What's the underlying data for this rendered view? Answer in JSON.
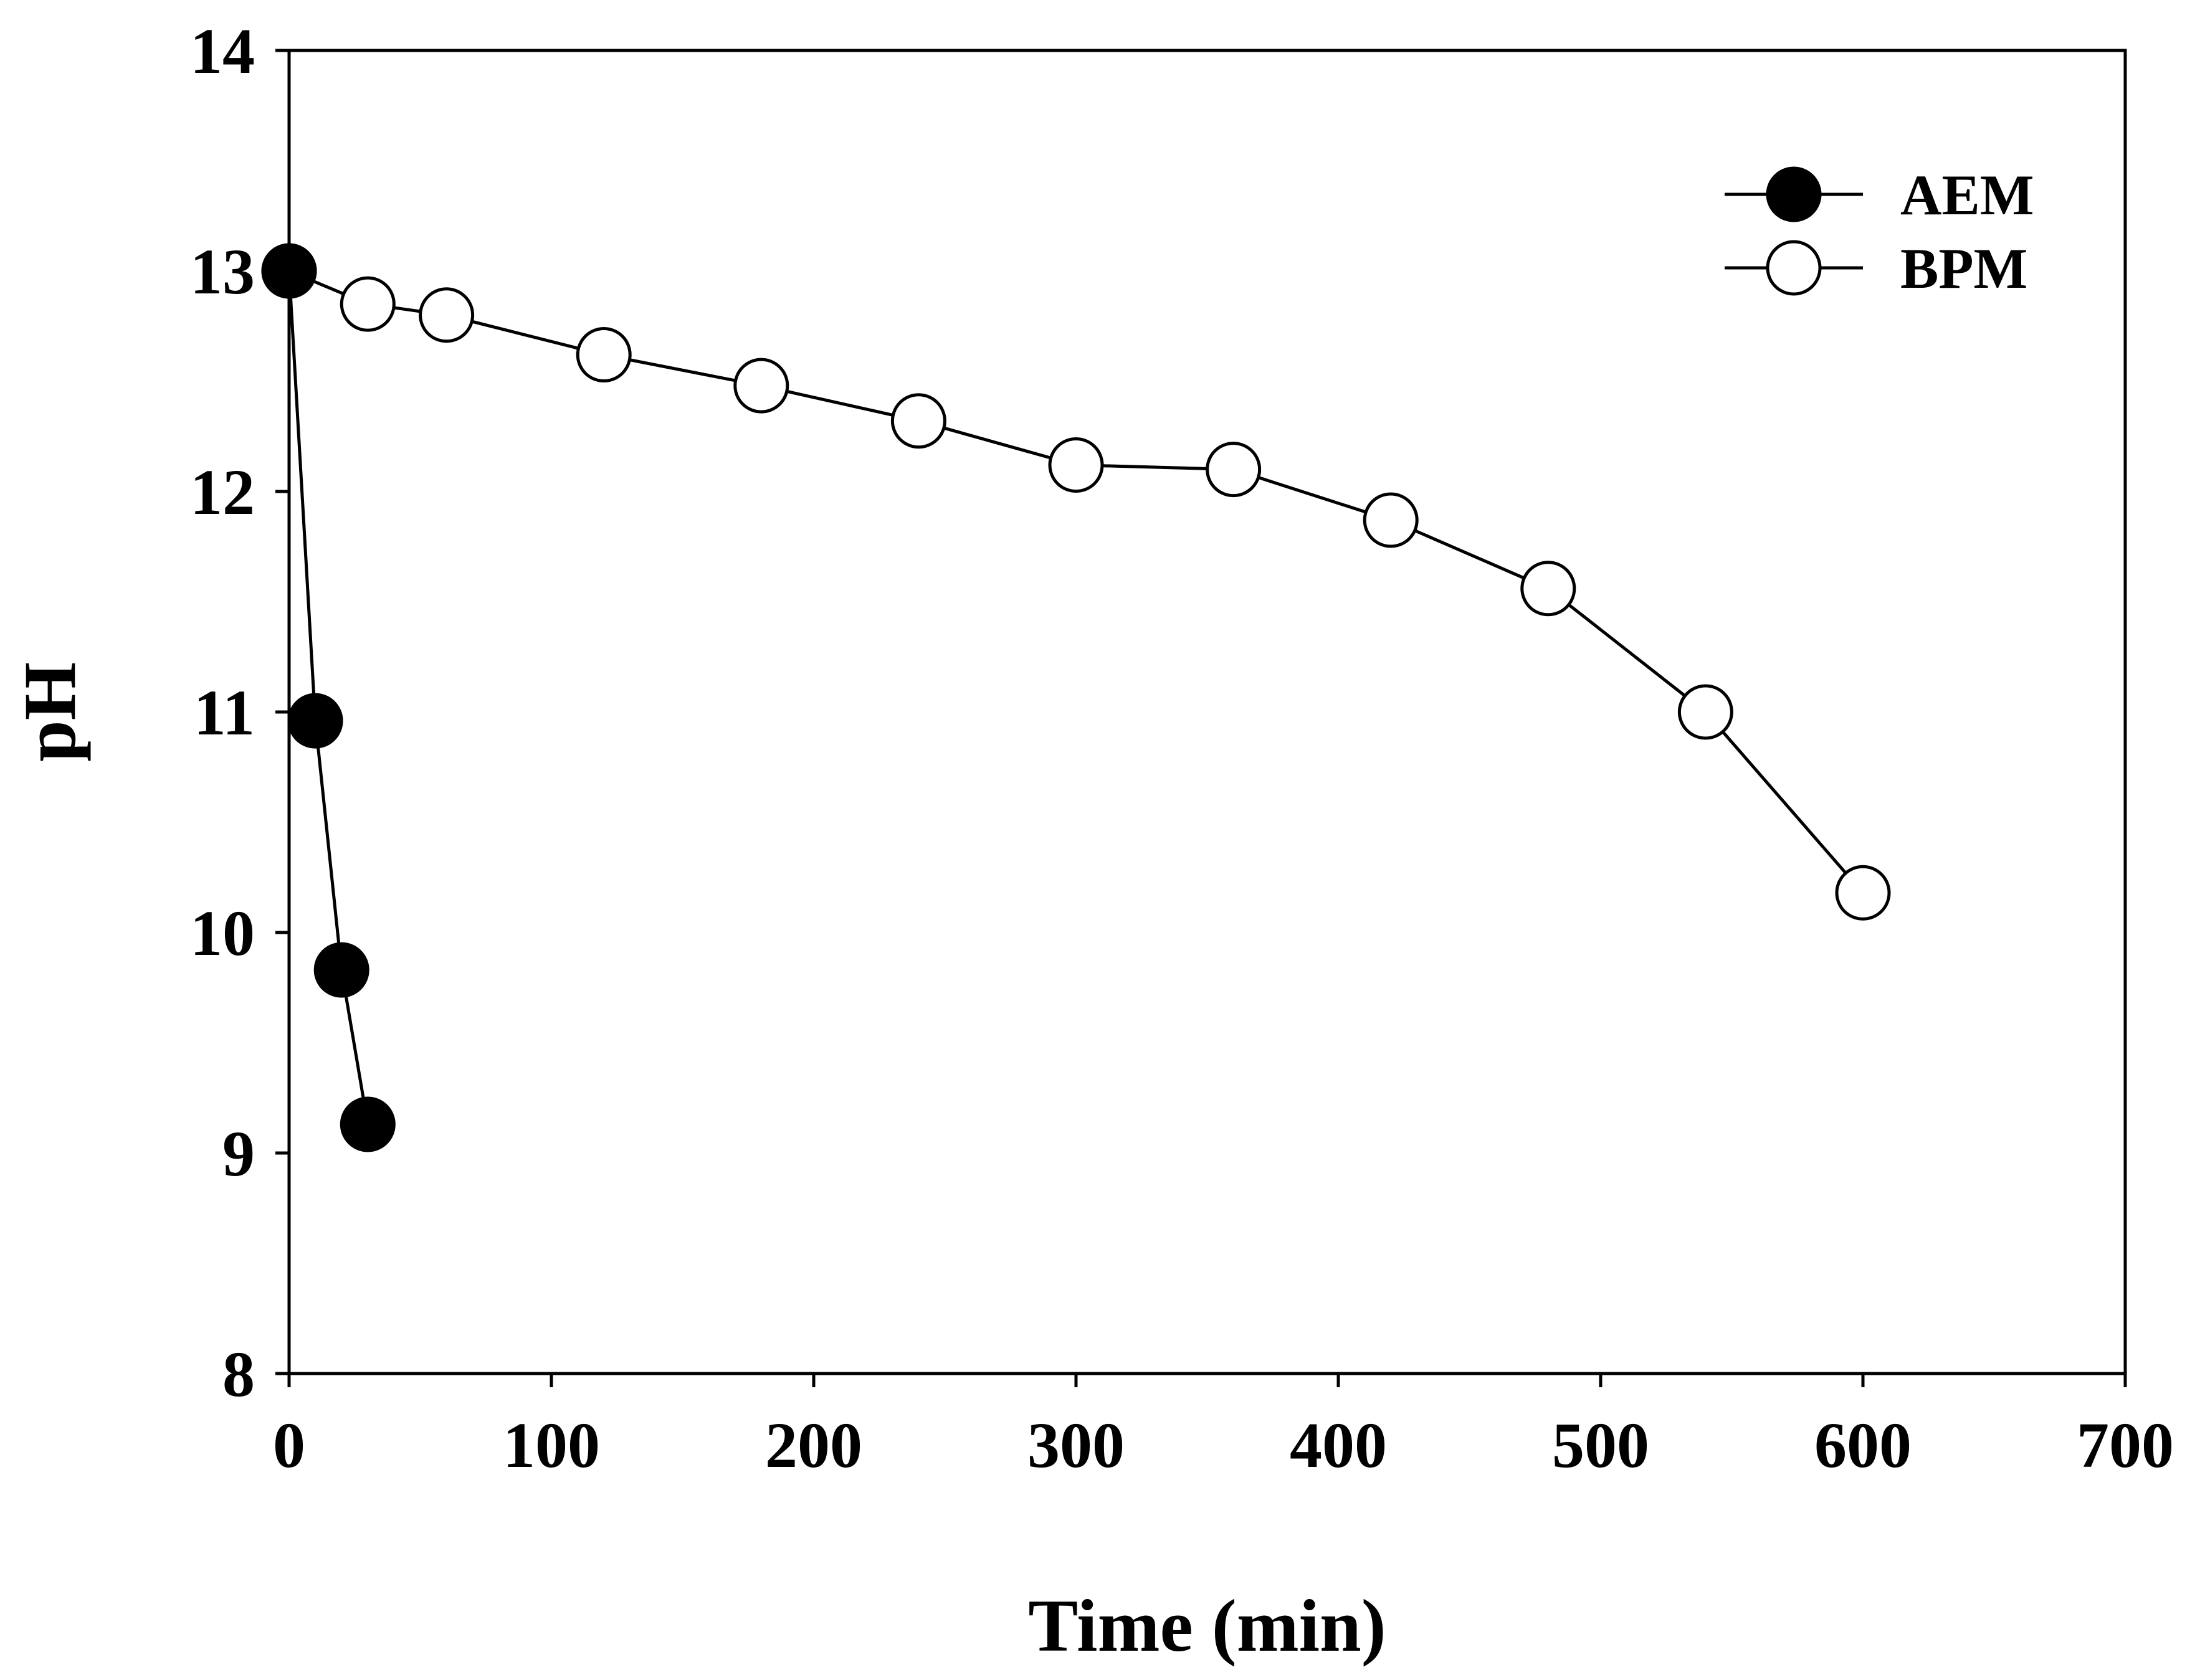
{
  "chart_data": {
    "type": "line",
    "title": "",
    "xlabel": "Time (min)",
    "ylabel": "pH",
    "xlim": [
      0,
      700
    ],
    "ylim": [
      8,
      14
    ],
    "xticks": [
      0,
      100,
      200,
      300,
      400,
      500,
      600,
      700
    ],
    "yticks": [
      8,
      9,
      10,
      11,
      12,
      13,
      14
    ],
    "grid": false,
    "legend_position": "top-right",
    "series": [
      {
        "name": "AEM",
        "marker": "filled-circle",
        "color": "#000000",
        "x": [
          0,
          10,
          20,
          30
        ],
        "y": [
          13.0,
          10.96,
          9.83,
          9.13
        ]
      },
      {
        "name": "BPM",
        "marker": "open-circle",
        "color": "#000000",
        "x": [
          0,
          30,
          60,
          120,
          180,
          240,
          300,
          360,
          420,
          480,
          540,
          600
        ],
        "y": [
          13.0,
          12.85,
          12.8,
          12.62,
          12.48,
          12.32,
          12.12,
          12.1,
          11.87,
          11.56,
          11.0,
          10.18
        ]
      }
    ]
  }
}
